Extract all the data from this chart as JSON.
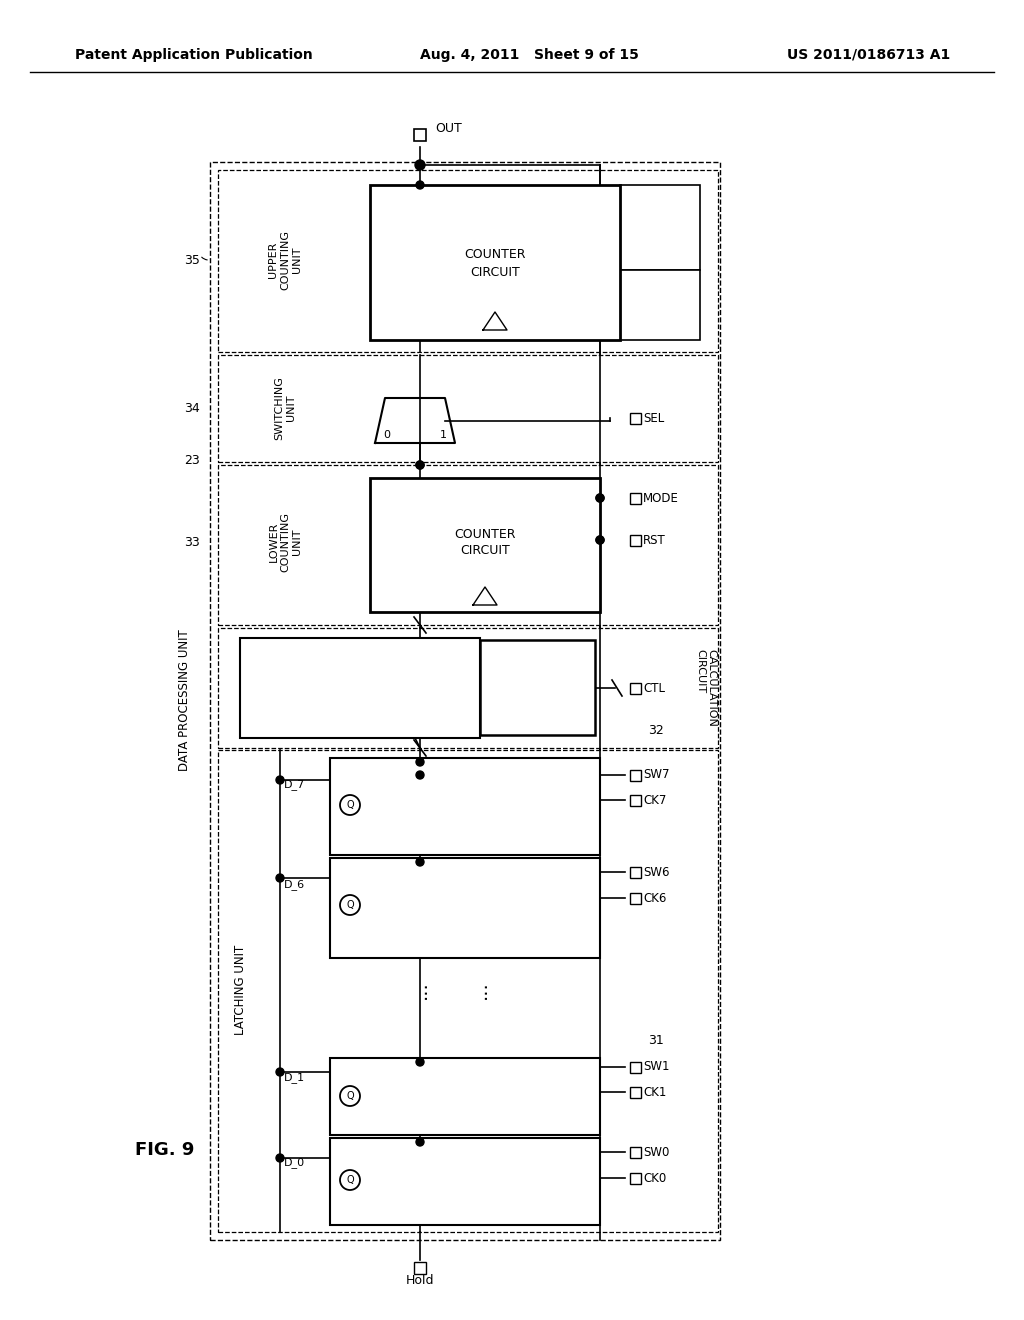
{
  "bg_color": "#ffffff",
  "title_left": "Patent Application Publication",
  "title_mid": "Aug. 4, 2011   Sheet 9 of 15",
  "title_right": "US 2011/0186713 A1",
  "fig_label": "FIG. 9"
}
